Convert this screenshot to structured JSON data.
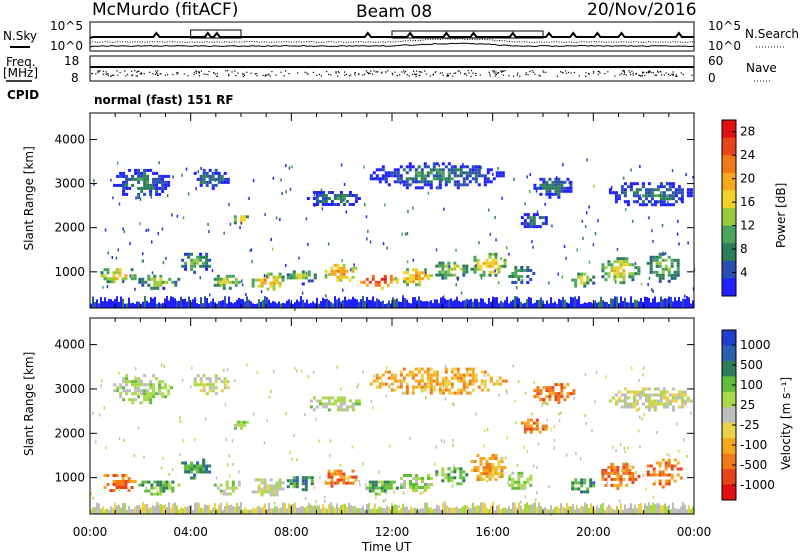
{
  "header": {
    "station": "McMurdo (fitACF)",
    "beam": "Beam 08",
    "date": "20/Nov/2016"
  },
  "left_labels": {
    "nsky": "N.Sky",
    "freq": "Freq.",
    "freq_unit": "[MHz]",
    "cpid": "CPID"
  },
  "right_labels": {
    "nsearch": "N.Search",
    "nave": "Nave"
  },
  "noise_axis_ticks": [
    "10^5",
    "10^0"
  ],
  "freq_axis_ticks": [
    "18",
    "8"
  ],
  "nave_axis_ticks": [
    "60",
    "0"
  ],
  "cpid_text": "normal (fast) 151 RF",
  "x_axis_title": "Time UT",
  "colors": {
    "power": [
      "#1f1fff",
      "#2a4fb0",
      "#2e7d5a",
      "#4aa55a",
      "#9acb3c",
      "#f0d22a",
      "#f5a81e",
      "#f07a18",
      "#e8441a",
      "#e01010"
    ],
    "velocity": [
      "#1f3fd0",
      "#2a5fb0",
      "#2e7d5a",
      "#5fbf3a",
      "#a9d84a",
      "#bdbdbd",
      "#e9d24a",
      "#f5a81e",
      "#f07a18",
      "#e8441a",
      "#e01010"
    ]
  },
  "chart_data": [
    {
      "type": "heatmap",
      "name": "power",
      "x_ticks": [
        "00:00",
        "04:00",
        "08:00",
        "12:00",
        "16:00",
        "20:00",
        "00:00"
      ],
      "xlim_hours": [
        0,
        24
      ],
      "ylabel": "Slant Range [km]",
      "ylim": [
        180,
        4600
      ],
      "y_ticks": [
        1000,
        2000,
        3000,
        4000
      ],
      "colorbar_label": "Power [dB]",
      "colorbar_ticks": [
        4,
        8,
        12,
        16,
        20,
        24,
        28
      ],
      "colorbar_range": [
        0,
        30
      ],
      "regions": [
        {
          "t": [
            0.3,
            1.8
          ],
          "r": [
            750,
            1150
          ],
          "v": 18
        },
        {
          "t": [
            1.8,
            3.5
          ],
          "r": [
            650,
            1000
          ],
          "v": 14
        },
        {
          "t": [
            3.5,
            4.8
          ],
          "r": [
            1000,
            1500
          ],
          "v": 12
        },
        {
          "t": [
            4.8,
            6.0
          ],
          "r": [
            650,
            1000
          ],
          "v": 16
        },
        {
          "t": [
            6.3,
            7.7
          ],
          "r": [
            600,
            1050
          ],
          "v": 20
        },
        {
          "t": [
            7.7,
            9.0
          ],
          "r": [
            750,
            1100
          ],
          "v": 14
        },
        {
          "t": [
            9.2,
            10.6
          ],
          "r": [
            800,
            1250
          ],
          "v": 22
        },
        {
          "t": [
            10.6,
            12.2
          ],
          "r": [
            650,
            1000
          ],
          "v": 27
        },
        {
          "t": [
            12.2,
            13.6
          ],
          "r": [
            700,
            1150
          ],
          "v": 20
        },
        {
          "t": [
            13.6,
            15.0
          ],
          "r": [
            850,
            1300
          ],
          "v": 15
        },
        {
          "t": [
            15.0,
            16.5
          ],
          "r": [
            900,
            1500
          ],
          "v": 18
        },
        {
          "t": [
            16.5,
            17.6
          ],
          "r": [
            750,
            1200
          ],
          "v": 12
        },
        {
          "t": [
            19.0,
            20.0
          ],
          "r": [
            650,
            1050
          ],
          "v": 14
        },
        {
          "t": [
            20.2,
            21.8
          ],
          "r": [
            750,
            1400
          ],
          "v": 16
        },
        {
          "t": [
            22.0,
            23.5
          ],
          "r": [
            800,
            1500
          ],
          "v": 13
        },
        {
          "t": [
            0.8,
            3.2
          ],
          "r": [
            2700,
            3400
          ],
          "v": 8
        },
        {
          "t": [
            4.0,
            5.5
          ],
          "r": [
            2900,
            3400
          ],
          "v": 8
        },
        {
          "t": [
            5.6,
            6.3
          ],
          "r": [
            2100,
            2350
          ],
          "v": 18
        },
        {
          "t": [
            8.5,
            10.8
          ],
          "r": [
            2500,
            2900
          ],
          "v": 8
        },
        {
          "t": [
            11.0,
            16.5
          ],
          "r": [
            2900,
            3550
          ],
          "v": 8
        },
        {
          "t": [
            17.0,
            18.2
          ],
          "r": [
            2000,
            2400
          ],
          "v": 8
        },
        {
          "t": [
            17.5,
            19.2
          ],
          "r": [
            2700,
            3200
          ],
          "v": 8
        },
        {
          "t": [
            20.5,
            24.0
          ],
          "r": [
            2500,
            3100
          ],
          "v": 8
        }
      ]
    },
    {
      "type": "heatmap",
      "name": "velocity",
      "x_ticks": [
        "00:00",
        "04:00",
        "08:00",
        "12:00",
        "16:00",
        "20:00",
        "00:00"
      ],
      "xlim_hours": [
        0,
        24
      ],
      "ylabel": "Slant Range [km]",
      "ylim": [
        180,
        4600
      ],
      "y_ticks": [
        1000,
        2000,
        3000,
        4000
      ],
      "colorbar_label": "Velocity [m s⁻¹]",
      "colorbar_ticks": [
        "1000",
        "500",
        "100",
        "25",
        "-25",
        "-100",
        "-500",
        "-1000"
      ],
      "regions": [
        {
          "t": [
            0.3,
            1.8
          ],
          "r": [
            700,
            1150
          ],
          "c": 8
        },
        {
          "t": [
            1.8,
            3.5
          ],
          "r": [
            650,
            1000
          ],
          "c": 3
        },
        {
          "t": [
            3.5,
            4.8
          ],
          "r": [
            1000,
            1500
          ],
          "c": 2
        },
        {
          "t": [
            4.8,
            6.0
          ],
          "r": [
            650,
            1000
          ],
          "c": 4
        },
        {
          "t": [
            6.3,
            7.7
          ],
          "r": [
            600,
            1050
          ],
          "c": 5
        },
        {
          "t": [
            7.7,
            9.0
          ],
          "r": [
            750,
            1100
          ],
          "c": 2
        },
        {
          "t": [
            9.2,
            10.6
          ],
          "r": [
            800,
            1250
          ],
          "c": 8
        },
        {
          "t": [
            10.6,
            12.2
          ],
          "r": [
            650,
            1000
          ],
          "c": 3
        },
        {
          "t": [
            12.2,
            13.6
          ],
          "r": [
            700,
            1150
          ],
          "c": 4
        },
        {
          "t": [
            13.6,
            15.0
          ],
          "r": [
            850,
            1300
          ],
          "c": 3
        },
        {
          "t": [
            15.0,
            16.5
          ],
          "r": [
            900,
            1600
          ],
          "c": 7
        },
        {
          "t": [
            16.5,
            17.6
          ],
          "r": [
            750,
            1200
          ],
          "c": 4
        },
        {
          "t": [
            19.0,
            20.0
          ],
          "r": [
            650,
            1050
          ],
          "c": 2
        },
        {
          "t": [
            20.2,
            21.8
          ],
          "r": [
            750,
            1400
          ],
          "c": 8
        },
        {
          "t": [
            22.0,
            23.5
          ],
          "r": [
            800,
            1500
          ],
          "c": 8
        },
        {
          "t": [
            0.8,
            3.2
          ],
          "r": [
            2700,
            3400
          ],
          "c": 4
        },
        {
          "t": [
            4.0,
            5.5
          ],
          "r": [
            2900,
            3400
          ],
          "c": 5
        },
        {
          "t": [
            5.6,
            6.3
          ],
          "r": [
            2100,
            2350
          ],
          "c": 4
        },
        {
          "t": [
            8.5,
            10.8
          ],
          "r": [
            2500,
            2900
          ],
          "c": 4
        },
        {
          "t": [
            11.0,
            16.5
          ],
          "r": [
            2900,
            3550
          ],
          "c": 7
        },
        {
          "t": [
            17.0,
            18.2
          ],
          "r": [
            2000,
            2400
          ],
          "c": 8
        },
        {
          "t": [
            17.5,
            19.2
          ],
          "r": [
            2700,
            3200
          ],
          "c": 8
        },
        {
          "t": [
            20.5,
            24.0
          ],
          "r": [
            2500,
            3100
          ],
          "c": 5
        }
      ]
    }
  ]
}
